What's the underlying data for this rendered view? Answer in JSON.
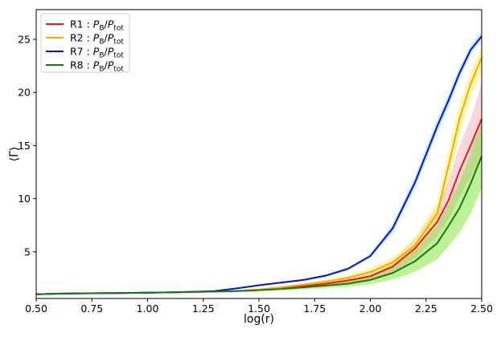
{
  "chart_data": {
    "type": "line",
    "title": "",
    "xlabel": "log(r)",
    "ylabel": "⟨Γ⟩",
    "xlim": [
      0.5,
      2.5
    ],
    "ylim": [
      0.6,
      27.8
    ],
    "xticks": [
      "0.50",
      "0.75",
      "1.00",
      "1.25",
      "1.50",
      "1.75",
      "2.00",
      "2.25",
      "2.50"
    ],
    "yticks": [
      "5",
      "10",
      "15",
      "20",
      "25"
    ],
    "grid": false,
    "legend_position": "top-left",
    "x": [
      0.5,
      0.6,
      0.7,
      0.8,
      0.9,
      1.0,
      1.1,
      1.2,
      1.3,
      1.4,
      1.5,
      1.6,
      1.7,
      1.8,
      1.9,
      2.0,
      2.1,
      2.2,
      2.3,
      2.35,
      2.4,
      2.45,
      2.5
    ],
    "series": [
      {
        "name": "R1 : P_B/P_tot",
        "legend_label": {
          "prefix": "R1 : ",
          "num": "P",
          "num_sub": "B",
          "den": "P",
          "den_sub": "tot"
        },
        "color": "#e41a1c",
        "band_color": "#f4a6ae",
        "values": [
          1.0,
          1.05,
          1.08,
          1.1,
          1.12,
          1.15,
          1.18,
          1.22,
          1.25,
          1.3,
          1.4,
          1.55,
          1.75,
          2.0,
          2.3,
          2.7,
          3.6,
          5.3,
          7.8,
          9.8,
          12.6,
          15.0,
          17.5
        ],
        "band_low": [
          1.0,
          1.04,
          1.07,
          1.09,
          1.11,
          1.14,
          1.17,
          1.2,
          1.22,
          1.27,
          1.35,
          1.45,
          1.6,
          1.8,
          2.0,
          2.3,
          3.0,
          4.4,
          6.5,
          8.0,
          10.2,
          12.0,
          14.0
        ],
        "band_high": [
          1.0,
          1.06,
          1.09,
          1.11,
          1.13,
          1.16,
          1.19,
          1.24,
          1.28,
          1.33,
          1.45,
          1.65,
          1.9,
          2.2,
          2.6,
          3.1,
          4.2,
          6.2,
          9.1,
          11.6,
          15.0,
          17.5,
          20.8
        ]
      },
      {
        "name": "R2 : P_B/P_tot",
        "legend_label": {
          "prefix": "R2 : ",
          "num": "P",
          "num_sub": "B",
          "den": "P",
          "den_sub": "tot"
        },
        "color": "#ffa500",
        "band_color": "#ffee44",
        "values": [
          1.0,
          1.05,
          1.08,
          1.1,
          1.12,
          1.15,
          1.18,
          1.22,
          1.25,
          1.3,
          1.45,
          1.65,
          1.9,
          2.2,
          2.55,
          3.1,
          4.0,
          5.6,
          8.6,
          13.0,
          17.5,
          20.8,
          23.3
        ],
        "band_low": [
          1.0,
          1.04,
          1.07,
          1.09,
          1.11,
          1.14,
          1.17,
          1.2,
          1.22,
          1.27,
          1.38,
          1.55,
          1.75,
          2.0,
          2.3,
          2.7,
          3.5,
          4.9,
          7.5,
          11.5,
          16.0,
          19.5,
          22.0
        ],
        "band_high": [
          1.0,
          1.06,
          1.09,
          1.11,
          1.13,
          1.16,
          1.19,
          1.24,
          1.28,
          1.33,
          1.52,
          1.75,
          2.05,
          2.4,
          2.8,
          3.5,
          4.5,
          6.3,
          9.7,
          14.5,
          19.0,
          22.0,
          24.3
        ]
      },
      {
        "name": "R7 : P_B/P_tot",
        "legend_label": {
          "prefix": "R7 : ",
          "num": "P",
          "num_sub": "B",
          "den": "P",
          "den_sub": "tot"
        },
        "color": "#0a12c8",
        "band_color": "#5ed0f5",
        "values": [
          1.0,
          1.05,
          1.08,
          1.1,
          1.12,
          1.15,
          1.18,
          1.22,
          1.3,
          1.55,
          1.85,
          2.1,
          2.35,
          2.75,
          3.4,
          4.6,
          7.2,
          11.5,
          16.8,
          19.2,
          21.8,
          24.0,
          25.3
        ],
        "band_low": [
          1.0,
          1.04,
          1.07,
          1.09,
          1.11,
          1.14,
          1.17,
          1.2,
          1.27,
          1.5,
          1.78,
          2.02,
          2.25,
          2.62,
          3.25,
          4.4,
          6.8,
          11.0,
          16.2,
          18.6,
          21.3,
          23.6,
          25.0
        ],
        "band_high": [
          1.0,
          1.06,
          1.09,
          1.11,
          1.13,
          1.16,
          1.19,
          1.24,
          1.33,
          1.6,
          1.92,
          2.18,
          2.45,
          2.88,
          3.55,
          4.8,
          7.6,
          12.0,
          17.4,
          19.8,
          22.3,
          24.4,
          25.7
        ]
      },
      {
        "name": "R8 : P_B/P_tot",
        "legend_label": {
          "prefix": "R8 : ",
          "num": "P",
          "num_sub": "B",
          "den": "P",
          "den_sub": "tot"
        },
        "color": "#117a11",
        "band_color": "#6fe01a",
        "values": [
          1.0,
          1.05,
          1.08,
          1.1,
          1.12,
          1.15,
          1.18,
          1.22,
          1.25,
          1.3,
          1.38,
          1.5,
          1.65,
          1.82,
          2.0,
          2.35,
          3.0,
          4.1,
          5.8,
          7.4,
          9.1,
          11.4,
          14.0
        ],
        "band_low": [
          1.0,
          1.04,
          1.07,
          1.09,
          1.11,
          1.14,
          1.17,
          1.2,
          1.22,
          1.25,
          1.3,
          1.38,
          1.48,
          1.6,
          1.72,
          1.95,
          2.4,
          3.1,
          4.3,
          5.5,
          6.8,
          8.6,
          11.0
        ],
        "band_high": [
          1.0,
          1.06,
          1.09,
          1.11,
          1.13,
          1.16,
          1.19,
          1.24,
          1.28,
          1.35,
          1.46,
          1.62,
          1.82,
          2.05,
          2.3,
          2.75,
          3.6,
          5.1,
          7.4,
          9.4,
          11.6,
          14.2,
          17.3
        ]
      }
    ]
  }
}
